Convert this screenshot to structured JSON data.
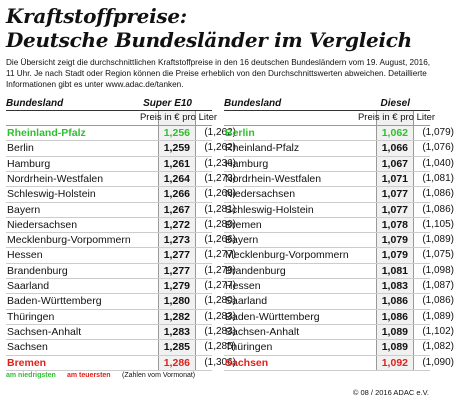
{
  "header": {
    "title_line1": "Kraftstoffpreise:",
    "title_line2": "Deutsche Bundesländer im Vergleich",
    "description": "Die Übersicht zeigt die durchschnittlichen Kraftstoffpreise in den 16 deutschen Bundesländern vom 19. August, 2016, 11 Uhr. Je nach Stadt oder Region können die Preise erheblich von den Durchschnittswerten abweichen. Detaillierte Informationen gibt es unter www.adac.de/tanken."
  },
  "tables": [
    {
      "col_region": "Bundesland",
      "col_fuel": "Super E10",
      "price_unit": "Preis in € pro Liter",
      "rows": [
        [
          "Rheinland-Pfalz",
          "1,256",
          "(1,262)"
        ],
        [
          "Berlin",
          "1,259",
          "(1,262)"
        ],
        [
          "Hamburg",
          "1,261",
          "(1,236)"
        ],
        [
          "Nordrhein-Westfalen",
          "1,264",
          "(1,273)"
        ],
        [
          "Schleswig-Holstein",
          "1,266",
          "(1,268)"
        ],
        [
          "Bayern",
          "1,267",
          "(1,281)"
        ],
        [
          "Niedersachsen",
          "1,272",
          "(1,280)"
        ],
        [
          "Mecklenburg-Vorpommern",
          "1,273",
          "(1,266)"
        ],
        [
          "Hessen",
          "1,277",
          "(1,277)"
        ],
        [
          "Brandenburg",
          "1,277",
          "(1,279)"
        ],
        [
          "Saarland",
          "1,279",
          "(1,277)"
        ],
        [
          "Baden-Württemberg",
          "1,280",
          "(1,280)"
        ],
        [
          "Thüringen",
          "1,282",
          "(1,283)"
        ],
        [
          "Sachsen-Anhalt",
          "1,283",
          "(1,283)"
        ],
        [
          "Sachsen",
          "1,285",
          "(1,285)"
        ],
        [
          "Bremen",
          "1,286",
          "(1,306)"
        ]
      ]
    },
    {
      "col_region": "Bundesland",
      "col_fuel": "Diesel",
      "price_unit": "Preis in € pro Liter",
      "rows": [
        [
          "Berlin",
          "1,062",
          "(1,079)"
        ],
        [
          "Rheinland-Pfalz",
          "1,066",
          "(1,076)"
        ],
        [
          "Hamburg",
          "1,067",
          "(1,040)"
        ],
        [
          "Nordrhein-Westfalen",
          "1,071",
          "(1,081)"
        ],
        [
          "Niedersachsen",
          "1,077",
          "(1,086)"
        ],
        [
          "Schleswig-Holstein",
          "1,077",
          "(1,086)"
        ],
        [
          "Bremen",
          "1,078",
          "(1,105)"
        ],
        [
          "Bayern",
          "1,079",
          "(1,089)"
        ],
        [
          "Mecklenburg-Vorpommern",
          "1,079",
          "(1,075)"
        ],
        [
          "Brandenburg",
          "1,081",
          "(1,098)"
        ],
        [
          "Hessen",
          "1,083",
          "(1,087)"
        ],
        [
          "Saarland",
          "1,086",
          "(1,086)"
        ],
        [
          "Baden-Württemberg",
          "1,086",
          "(1,089)"
        ],
        [
          "Sachsen-Anhalt",
          "1,089",
          "(1,102)"
        ],
        [
          "Thüringen",
          "1,089",
          "(1,082)"
        ],
        [
          "Sachsen",
          "1,092",
          "(1,090)"
        ]
      ]
    }
  ],
  "legend": {
    "lowest": "am niedrigsten",
    "highest": "am teuersten",
    "previous": "(Zahlen vom Vormonat)"
  },
  "credit": "© 08 / 2016 ADAC e.V."
}
